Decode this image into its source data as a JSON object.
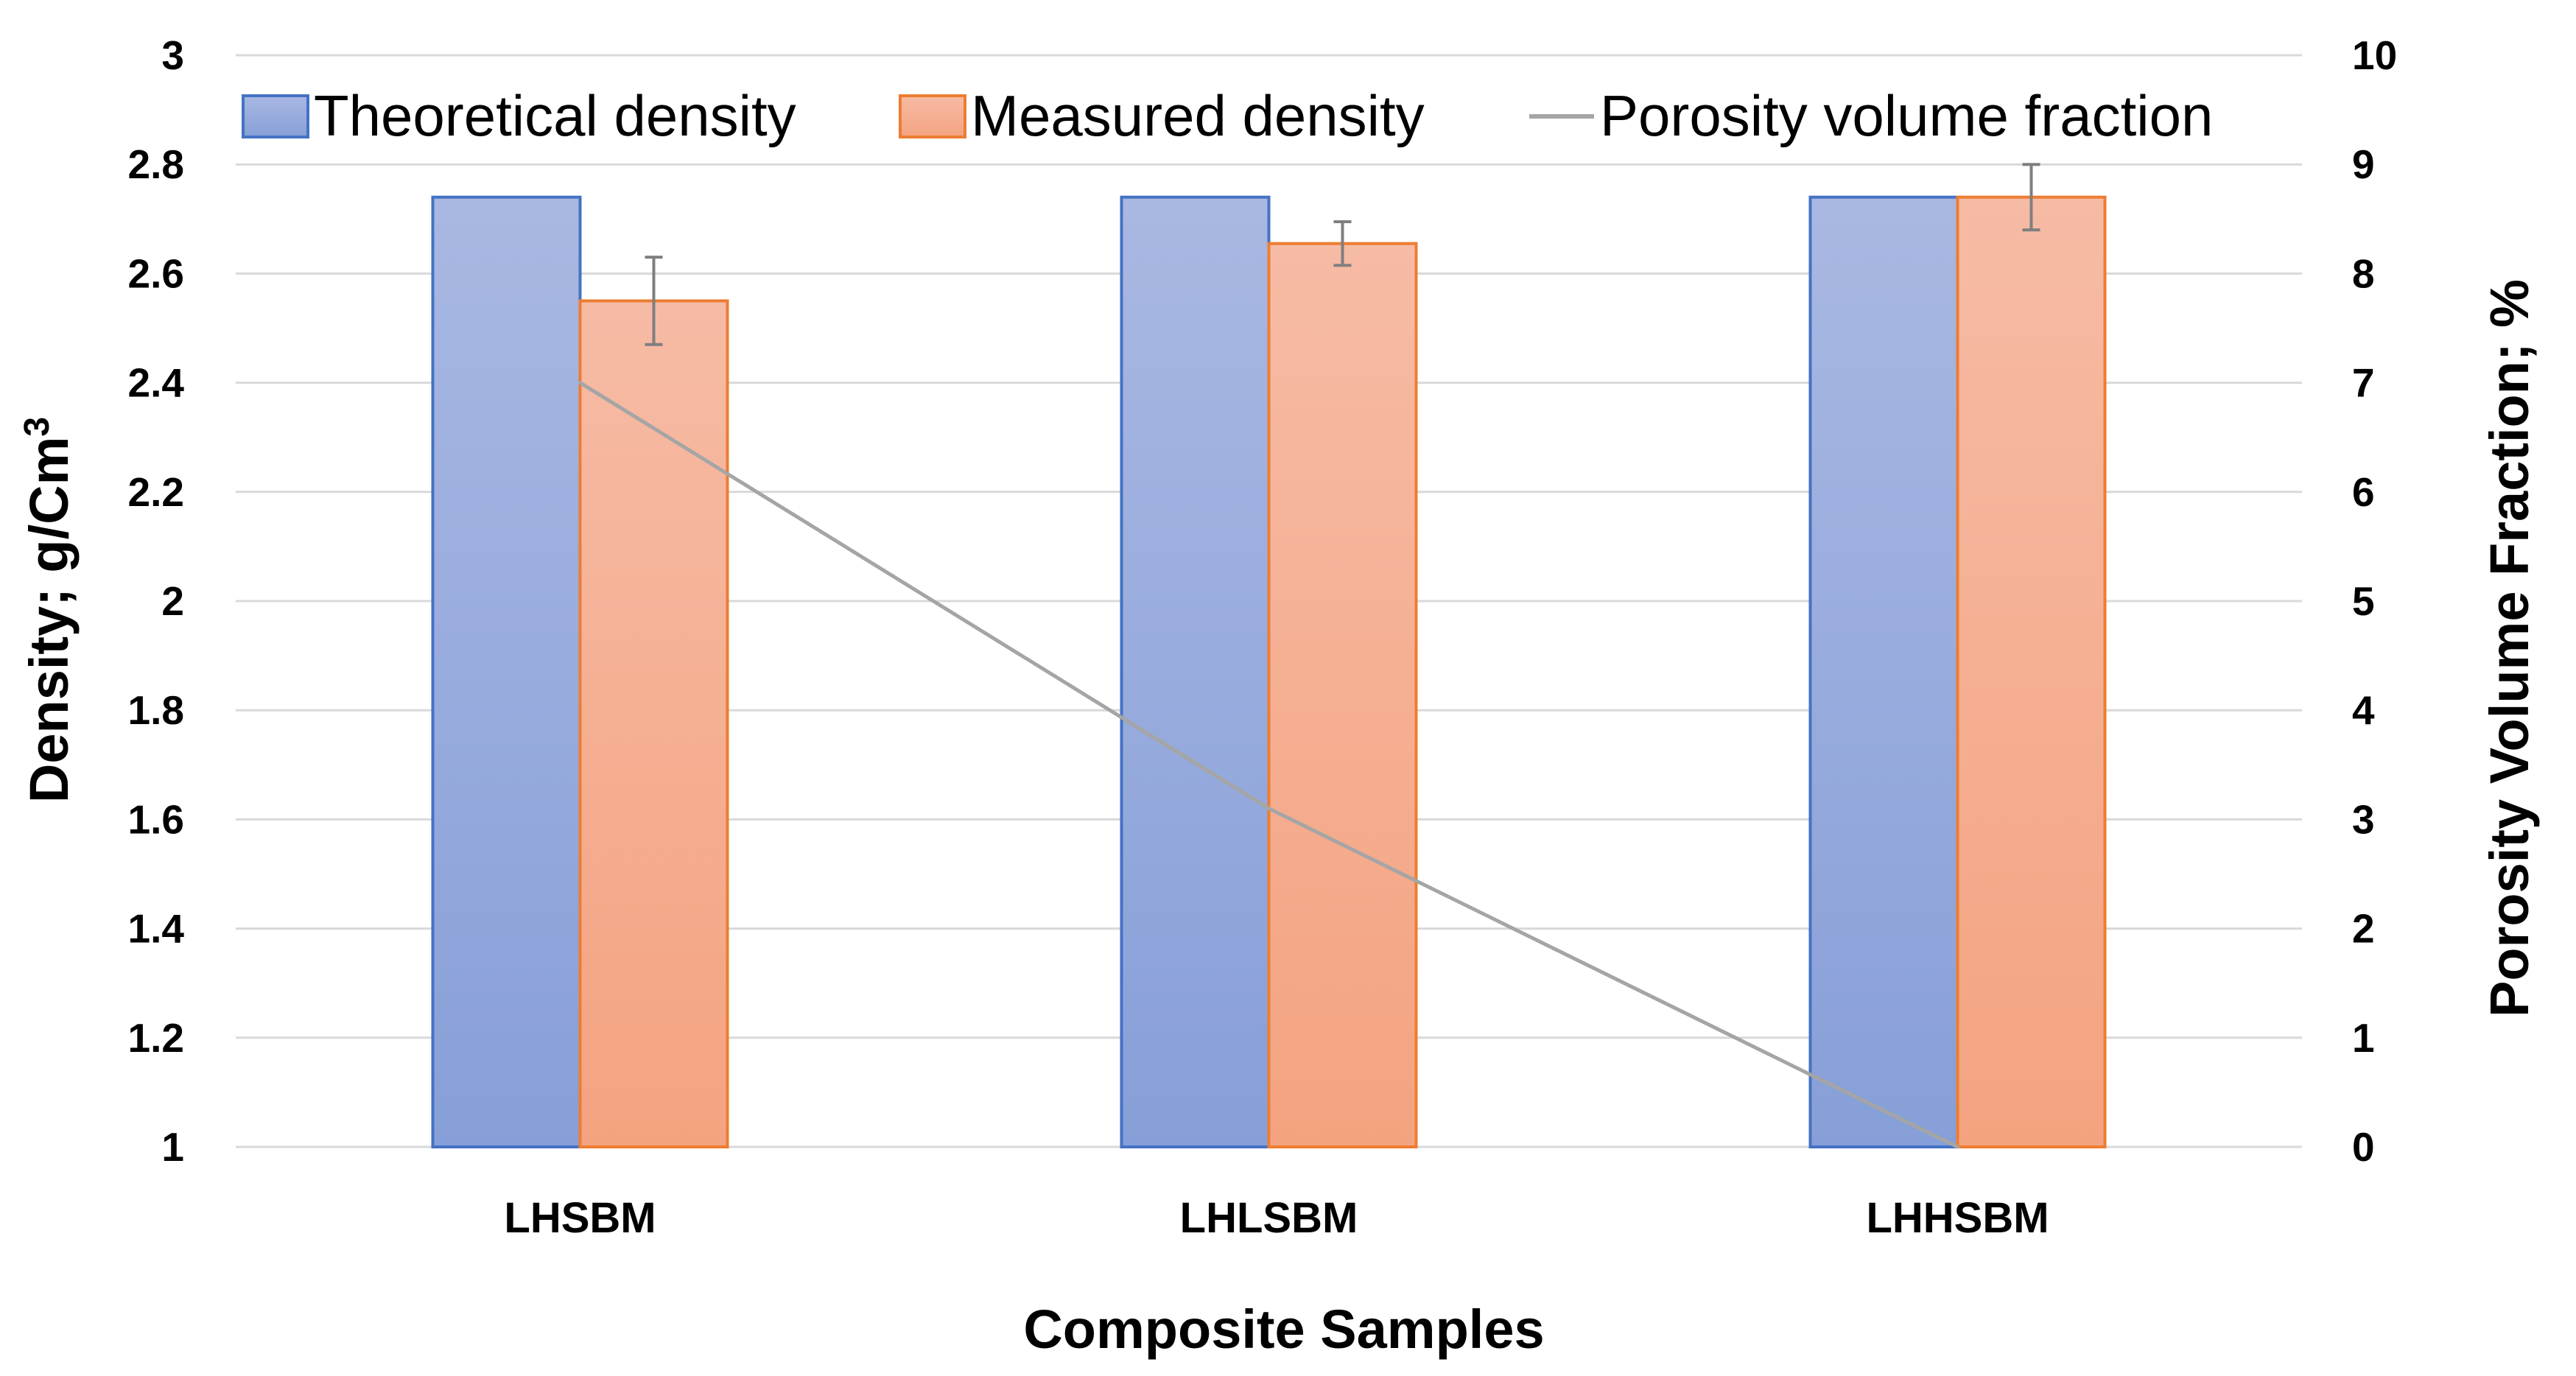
{
  "chart_data": {
    "type": "bar",
    "categories": [
      "LHSBM",
      "LHLSBM",
      "LHHSBM"
    ],
    "series": [
      {
        "name": "Theoretical density",
        "axis": "left",
        "values": [
          2.74,
          2.74,
          2.74
        ],
        "color": "#8EA3D9",
        "color_top": "#A9B8E2",
        "color_bottom": "#879FD8",
        "border": "#4472C4"
      },
      {
        "name": "Measured density",
        "axis": "left",
        "values": [
          2.55,
          2.655,
          2.74
        ],
        "errors": [
          0.08,
          0.04,
          0.06
        ],
        "color": "#F4A988",
        "color_top": "#F6BBA5",
        "color_bottom": "#F4A380",
        "border": "#ED7D31"
      },
      {
        "name": "Porosity volume fraction",
        "axis": "right",
        "type": "line",
        "values": [
          7.0,
          3.1,
          0.0
        ],
        "color": "#A5A5A5"
      }
    ],
    "xlabel": "Composite Samples",
    "ylabel": "Density; g/Cm",
    "ylabel_superscript": "3",
    "y2label": "Porosity Volume Fraction; %",
    "ylim": [
      1,
      3
    ],
    "yticks": [
      "1",
      "1.2",
      "1.4",
      "1.6",
      "1.8",
      "2",
      "2.2",
      "2.4",
      "2.6",
      "2.8",
      "3"
    ],
    "y2lim": [
      0,
      10
    ],
    "y2ticks": [
      "0",
      "1",
      "2",
      "3",
      "4",
      "5",
      "6",
      "7",
      "8",
      "9",
      "10"
    ],
    "grid": true,
    "legend_position": "top",
    "gridline_color": "#D9D9D9",
    "errorbar_color": "#7F7F7F"
  }
}
